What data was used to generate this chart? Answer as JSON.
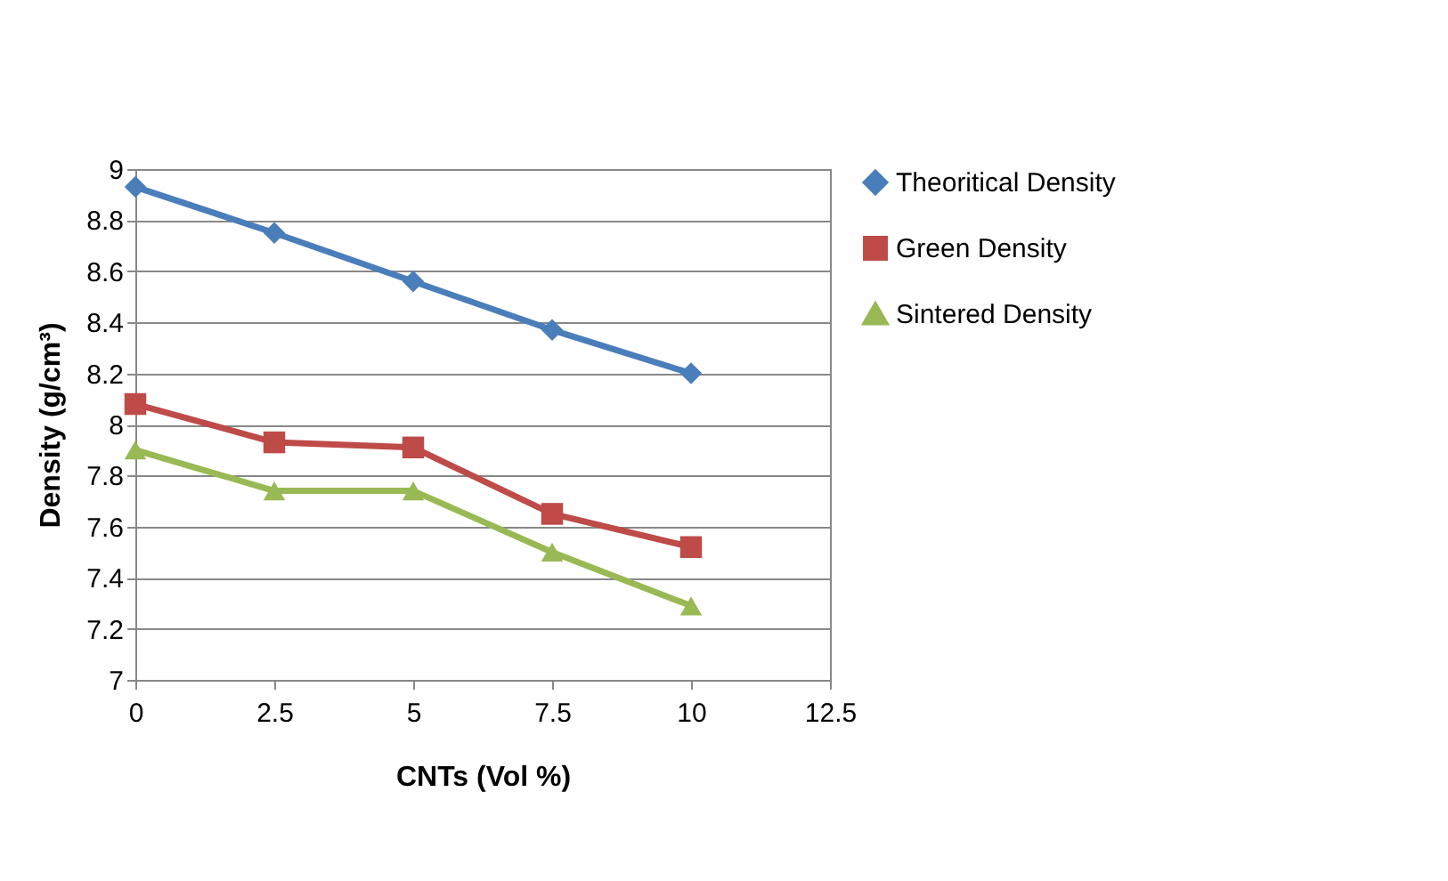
{
  "chart_data": {
    "type": "line",
    "xlabel": "CNTs (Vol %)",
    "ylabel": "Density (g/cm³)",
    "x": [
      0,
      2.5,
      5,
      7.5,
      10
    ],
    "series": [
      {
        "name": "Theoritical Density",
        "color": "#4a7ebb",
        "marker": "diamond",
        "values": [
          8.93,
          8.75,
          8.56,
          8.37,
          8.2
        ]
      },
      {
        "name": "Green Density",
        "color": "#be4b48",
        "marker": "square",
        "values": [
          8.08,
          7.93,
          7.91,
          7.65,
          7.52
        ]
      },
      {
        "name": "Sintered Density",
        "color": "#98b954",
        "marker": "triangle",
        "values": [
          7.9,
          7.74,
          7.74,
          7.5,
          7.29
        ]
      }
    ],
    "xlim": [
      0,
      12.5
    ],
    "xticks": [
      0,
      2.5,
      5,
      7.5,
      10,
      12.5
    ],
    "ylim": [
      7,
      9
    ],
    "yticks": [
      7,
      7.2,
      7.4,
      7.6,
      7.8,
      8,
      8.2,
      8.4,
      8.6,
      8.8,
      9
    ],
    "grid": "y",
    "legend": "right"
  }
}
